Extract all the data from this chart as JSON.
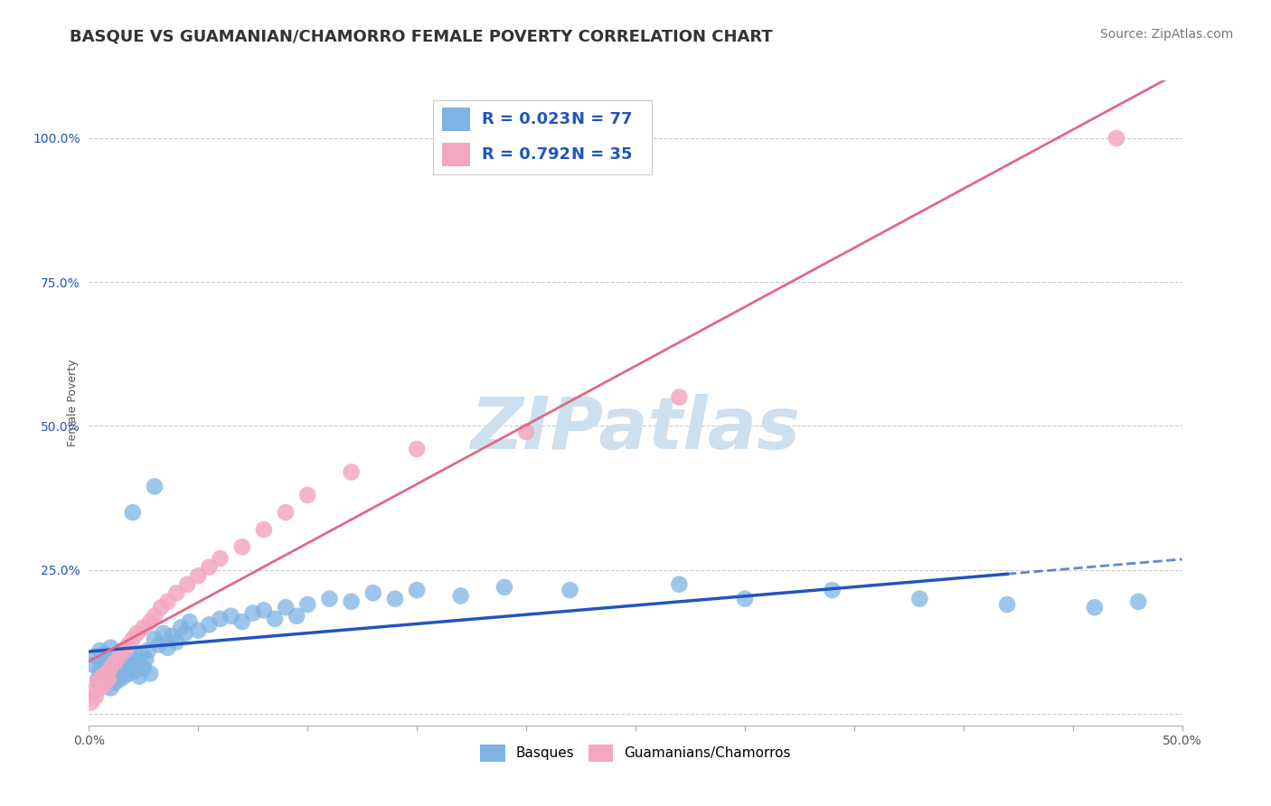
{
  "title": "BASQUE VS GUAMANIAN/CHAMORRO FEMALE POVERTY CORRELATION CHART",
  "source_text": "Source: ZipAtlas.com",
  "ylabel": "Female Poverty",
  "xlim": [
    0.0,
    0.5
  ],
  "ylim": [
    -0.02,
    1.1
  ],
  "xticks": [
    0.0,
    0.05,
    0.1,
    0.15,
    0.2,
    0.25,
    0.3,
    0.35,
    0.4,
    0.45,
    0.5
  ],
  "xtick_labels": [
    "0.0%",
    "",
    "",
    "",
    "",
    "",
    "",
    "",
    "",
    "",
    "50.0%"
  ],
  "yticks": [
    0.0,
    0.25,
    0.5,
    0.75,
    1.0
  ],
  "ytick_labels": [
    "",
    "25.0%",
    "50.0%",
    "75.0%",
    "100.0%"
  ],
  "background_color": "#ffffff",
  "grid_color": "#cccccc",
  "watermark_text": "ZIPatlas",
  "watermark_color": "#cce0f0",
  "basque_color": "#7eb3e3",
  "chamorro_color": "#f4a8c0",
  "basque_line_color": "#2255bb",
  "chamorro_line_color": "#e06888",
  "basque_r": 0.023,
  "basque_n": 77,
  "chamorro_r": 0.792,
  "chamorro_n": 35,
  "basque_x": [
    0.002,
    0.003,
    0.004,
    0.005,
    0.005,
    0.006,
    0.006,
    0.007,
    0.007,
    0.008,
    0.008,
    0.009,
    0.009,
    0.01,
    0.01,
    0.01,
    0.011,
    0.011,
    0.012,
    0.012,
    0.013,
    0.013,
    0.014,
    0.014,
    0.015,
    0.015,
    0.016,
    0.016,
    0.017,
    0.018,
    0.019,
    0.02,
    0.021,
    0.022,
    0.023,
    0.024,
    0.025,
    0.026,
    0.027,
    0.028,
    0.03,
    0.032,
    0.034,
    0.036,
    0.038,
    0.04,
    0.042,
    0.044,
    0.046,
    0.05,
    0.055,
    0.06,
    0.065,
    0.07,
    0.075,
    0.08,
    0.085,
    0.09,
    0.095,
    0.1,
    0.11,
    0.12,
    0.13,
    0.14,
    0.15,
    0.17,
    0.19,
    0.22,
    0.27,
    0.3,
    0.34,
    0.38,
    0.42,
    0.46,
    0.48,
    0.02,
    0.03
  ],
  "basque_y": [
    0.085,
    0.1,
    0.06,
    0.075,
    0.11,
    0.055,
    0.09,
    0.065,
    0.105,
    0.05,
    0.08,
    0.07,
    0.095,
    0.045,
    0.075,
    0.115,
    0.06,
    0.1,
    0.055,
    0.085,
    0.07,
    0.095,
    0.06,
    0.09,
    0.075,
    0.11,
    0.065,
    0.095,
    0.08,
    0.07,
    0.085,
    0.1,
    0.075,
    0.09,
    0.065,
    0.105,
    0.08,
    0.095,
    0.11,
    0.07,
    0.13,
    0.12,
    0.14,
    0.115,
    0.135,
    0.125,
    0.15,
    0.14,
    0.16,
    0.145,
    0.155,
    0.165,
    0.17,
    0.16,
    0.175,
    0.18,
    0.165,
    0.185,
    0.17,
    0.19,
    0.2,
    0.195,
    0.21,
    0.2,
    0.215,
    0.205,
    0.22,
    0.215,
    0.225,
    0.2,
    0.215,
    0.2,
    0.19,
    0.185,
    0.195,
    0.35,
    0.395
  ],
  "chamorro_x": [
    0.001,
    0.002,
    0.003,
    0.004,
    0.005,
    0.006,
    0.007,
    0.008,
    0.009,
    0.01,
    0.012,
    0.014,
    0.016,
    0.018,
    0.02,
    0.022,
    0.025,
    0.028,
    0.03,
    0.033,
    0.036,
    0.04,
    0.045,
    0.05,
    0.055,
    0.06,
    0.07,
    0.08,
    0.09,
    0.1,
    0.12,
    0.15,
    0.2,
    0.27,
    0.47
  ],
  "chamorro_y": [
    0.02,
    0.04,
    0.03,
    0.055,
    0.045,
    0.065,
    0.05,
    0.07,
    0.06,
    0.08,
    0.09,
    0.1,
    0.11,
    0.12,
    0.13,
    0.14,
    0.15,
    0.16,
    0.17,
    0.185,
    0.195,
    0.21,
    0.225,
    0.24,
    0.255,
    0.27,
    0.29,
    0.32,
    0.35,
    0.38,
    0.42,
    0.46,
    0.49,
    0.55,
    1.0
  ],
  "title_fontsize": 13,
  "axis_label_fontsize": 9,
  "tick_fontsize": 10,
  "source_fontsize": 10
}
